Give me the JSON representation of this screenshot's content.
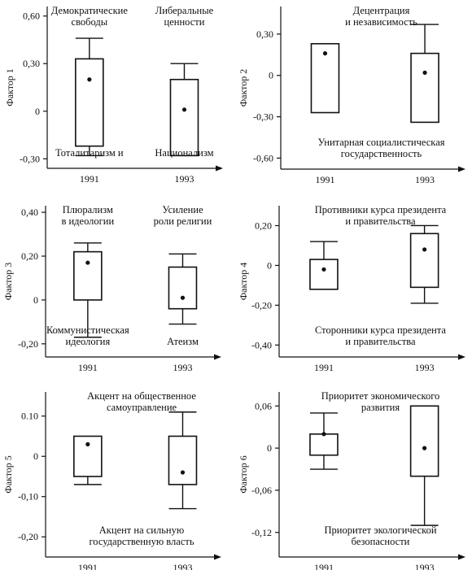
{
  "chart_data": [
    {
      "type": "boxplot",
      "ylabel": "Фактор 1",
      "ylim": [
        -0.36,
        0.66
      ],
      "ticks": [
        {
          "v": 0.6,
          "t": "0,60"
        },
        {
          "v": 0.3,
          "t": "0,30"
        },
        {
          "v": 0,
          "t": "0"
        },
        {
          "v": -0.3,
          "t": "-0,30"
        }
      ],
      "categories": [
        "1991",
        "1993"
      ],
      "boxes": [
        {
          "x": "1991",
          "whisker_low": -0.28,
          "q1": -0.22,
          "q3": 0.33,
          "whisker_high": 0.46,
          "point": 0.2
        },
        {
          "x": "1993",
          "whisker_low": -0.28,
          "q1": -0.28,
          "q3": 0.2,
          "whisker_high": 0.3,
          "point": 0.01
        }
      ],
      "top_labels": [
        [
          "Демократические",
          "свободы"
        ],
        [
          "Либеральные",
          "ценности"
        ]
      ],
      "bottom_labels": [
        [
          "Тоталитаризм   и"
        ],
        [
          "Национализм"
        ]
      ],
      "bottom_label_position": "low"
    },
    {
      "type": "boxplot",
      "ylabel": "Фактор 2",
      "ylim": [
        -0.68,
        0.5
      ],
      "ticks": [
        {
          "v": 0.3,
          "t": "0,30"
        },
        {
          "v": 0,
          "t": "0"
        },
        {
          "v": -0.3,
          "t": "-0,30"
        },
        {
          "v": -0.6,
          "t": "-0,60"
        }
      ],
      "categories": [
        "1991",
        "1993"
      ],
      "boxes": [
        {
          "x": "1991",
          "whisker_low": -0.27,
          "q1": -0.27,
          "q3": 0.23,
          "whisker_high": 0.23,
          "point": 0.16
        },
        {
          "x": "1993",
          "whisker_low": -0.34,
          "q1": -0.34,
          "q3": 0.16,
          "whisker_high": 0.37,
          "point": 0.02
        }
      ],
      "top_labels": [
        [
          "Децентрация",
          "и независимость"
        ]
      ],
      "bottom_labels": [
        [
          "Унитарная социалистическая",
          "государственность"
        ]
      ],
      "bottom_label_position": "low"
    },
    {
      "type": "boxplot",
      "ylabel": "Фактор 3",
      "ylim": [
        -0.26,
        0.43
      ],
      "ticks": [
        {
          "v": 0.4,
          "t": "0,40"
        },
        {
          "v": 0.2,
          "t": "0,20"
        },
        {
          "v": 0,
          "t": "0"
        },
        {
          "v": -0.2,
          "t": "-0,20"
        }
      ],
      "categories": [
        "1991",
        "1993"
      ],
      "boxes": [
        {
          "x": "1991",
          "whisker_low": -0.17,
          "q1": 0.0,
          "q3": 0.22,
          "whisker_high": 0.26,
          "point": 0.17
        },
        {
          "x": "1993",
          "whisker_low": -0.11,
          "q1": -0.04,
          "q3": 0.15,
          "whisker_high": 0.21,
          "point": 0.01
        }
      ],
      "top_labels": [
        [
          "Плюрализм",
          "в идеологии"
        ],
        [
          "Усиление",
          "роли религии"
        ]
      ],
      "bottom_labels": [
        [
          "Коммунистическая",
          "идеология"
        ],
        [
          "Атеизм"
        ]
      ],
      "bottom_label_position": "low"
    },
    {
      "type": "boxplot",
      "ylabel": "Фактор 4",
      "ylim": [
        -0.46,
        0.3
      ],
      "ticks": [
        {
          "v": 0.2,
          "t": "0,20"
        },
        {
          "v": 0,
          "t": "0"
        },
        {
          "v": -0.2,
          "t": "-0,20"
        },
        {
          "v": -0.4,
          "t": "-0,40"
        }
      ],
      "categories": [
        "1991",
        "1993"
      ],
      "boxes": [
        {
          "x": "1991",
          "whisker_low": -0.12,
          "q1": -0.12,
          "q3": 0.03,
          "whisker_high": 0.12,
          "point": -0.02
        },
        {
          "x": "1993",
          "whisker_low": -0.19,
          "q1": -0.11,
          "q3": 0.16,
          "whisker_high": 0.2,
          "point": 0.08
        }
      ],
      "top_labels": [
        [
          "Противники курса президента",
          "и правительства"
        ]
      ],
      "bottom_labels": [
        [
          "Сторонники курса президента",
          "и правительства"
        ]
      ],
      "bottom_label_position": "low"
    },
    {
      "type": "boxplot",
      "ylabel": "Фактор 5",
      "ylim": [
        -0.25,
        0.16
      ],
      "ticks": [
        {
          "v": 0.1,
          "t": "0.10"
        },
        {
          "v": 0,
          "t": "0"
        },
        {
          "v": -0.1,
          "t": "-0,10"
        },
        {
          "v": -0.2,
          "t": "-0,20"
        }
      ],
      "categories": [
        "1991",
        "1993"
      ],
      "boxes": [
        {
          "x": "1991",
          "whisker_low": -0.07,
          "q1": -0.05,
          "q3": 0.05,
          "whisker_high": 0.05,
          "point": 0.03
        },
        {
          "x": "1993",
          "whisker_low": -0.13,
          "q1": -0.07,
          "q3": 0.05,
          "whisker_high": 0.11,
          "point": -0.04
        }
      ],
      "top_labels": [
        [
          "Акцент на общественное",
          "самоуправление"
        ]
      ],
      "bottom_labels": [
        [
          "Акцент на сильную",
          "государственную власть"
        ]
      ],
      "bottom_label_position": "low"
    },
    {
      "type": "boxplot",
      "ylabel": "Фактор 6",
      "ylim": [
        -0.155,
        0.08
      ],
      "ticks": [
        {
          "v": 0.06,
          "t": "0,06"
        },
        {
          "v": 0,
          "t": "0"
        },
        {
          "v": -0.06,
          "t": "-0,06"
        },
        {
          "v": -0.12,
          "t": "-0,12"
        }
      ],
      "categories": [
        "1991",
        "1993"
      ],
      "boxes": [
        {
          "x": "1991",
          "whisker_low": -0.03,
          "q1": -0.01,
          "q3": 0.02,
          "whisker_high": 0.05,
          "point": 0.02
        },
        {
          "x": "1993",
          "whisker_low": -0.11,
          "q1": -0.04,
          "q3": 0.06,
          "whisker_high": 0.06,
          "point": 0.0
        }
      ],
      "top_labels": [
        [
          "Приоритет экономического",
          "развития"
        ]
      ],
      "bottom_labels": [
        [
          "Приоритет экологической",
          "безопасности"
        ]
      ],
      "bottom_label_position": "low"
    }
  ]
}
